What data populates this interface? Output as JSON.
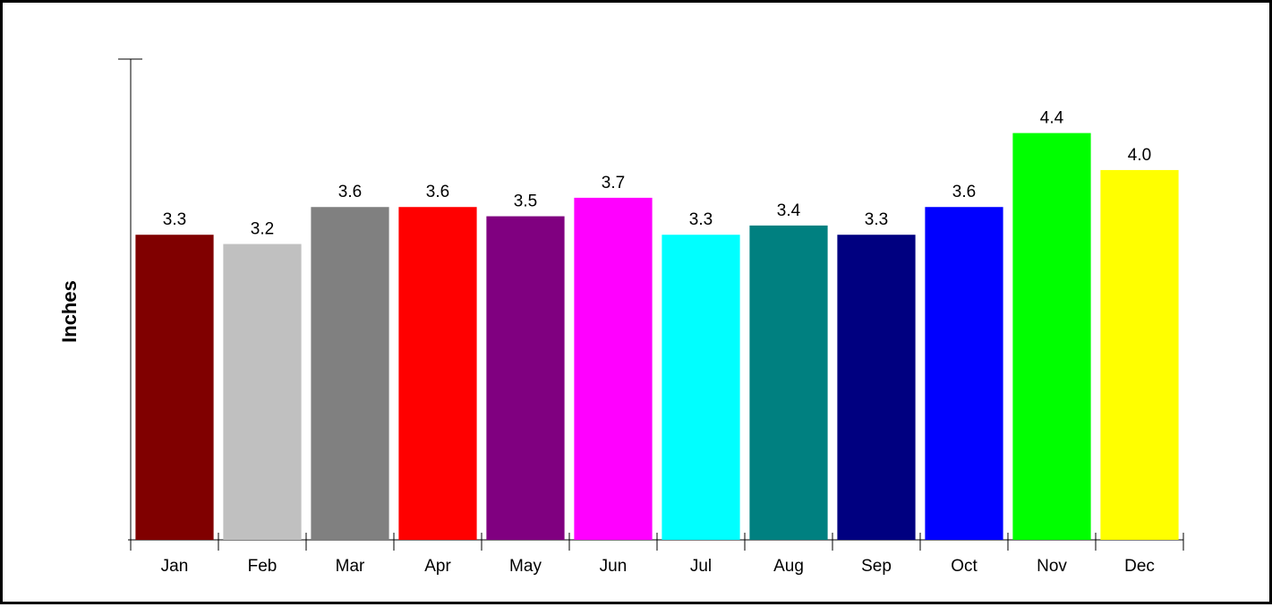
{
  "chart_data": {
    "type": "bar",
    "title": "",
    "xlabel": "",
    "ylabel": "Inches",
    "categories": [
      "Jan",
      "Feb",
      "Mar",
      "Apr",
      "May",
      "Jun",
      "Jul",
      "Aug",
      "Sep",
      "Oct",
      "Nov",
      "Dec"
    ],
    "values": [
      3.3,
      3.2,
      3.6,
      3.6,
      3.5,
      3.7,
      3.3,
      3.4,
      3.3,
      3.6,
      4.4,
      4.0
    ],
    "value_labels": [
      "3.3",
      "3.2",
      "3.6",
      "3.6",
      "3.5",
      "3.7",
      "3.3",
      "3.4",
      "3.3",
      "3.6",
      "4.4",
      "4.0"
    ],
    "colors": [
      "#800000",
      "#c0c0c0",
      "#808080",
      "#ff0000",
      "#800080",
      "#ff00ff",
      "#00ffff",
      "#008080",
      "#000080",
      "#0000ff",
      "#00ff00",
      "#ffff00"
    ],
    "ylim": [
      0,
      5.2
    ],
    "grid": false,
    "legend": "none"
  }
}
